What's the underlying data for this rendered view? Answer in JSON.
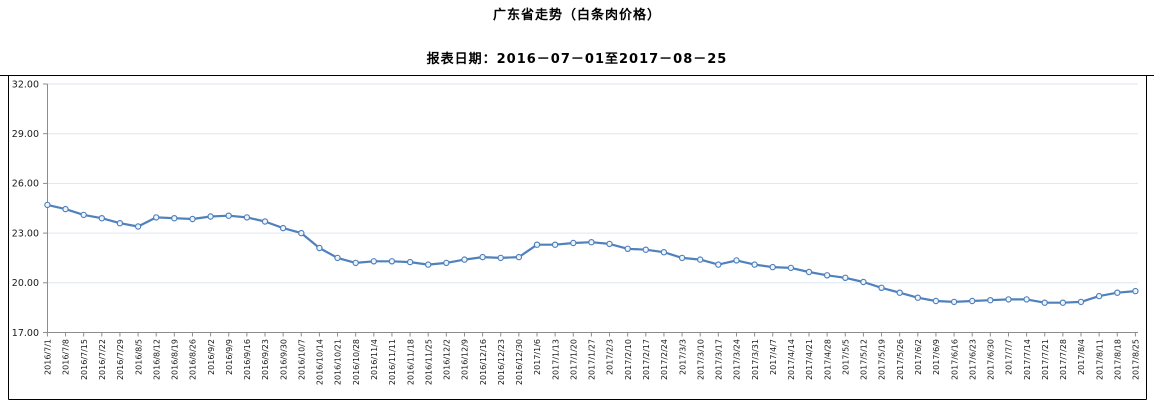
{
  "page": {
    "title": "广东省走势（白条肉价格）",
    "subtitle": "报表日期：2016－07－01至2017－08－25"
  },
  "chart_data": {
    "type": "line",
    "title": "广东省走势（白条肉价格）",
    "subtitle": "报表日期：2016－07－01至2017－08－25",
    "legend": "none",
    "grid": "horizontal",
    "ylim": [
      17,
      32
    ],
    "yticks": [
      17,
      20,
      23,
      26,
      29,
      32
    ],
    "ytick_labels": [
      "17.00",
      "20.00",
      "23.00",
      "26.00",
      "29.00",
      "32.00"
    ],
    "x": [
      "2016/7/1",
      "2016/7/8",
      "2016/7/15",
      "2016/7/22",
      "2016/7/29",
      "2016/8/5",
      "2016/8/12",
      "2016/8/19",
      "2016/8/26",
      "2016/9/2",
      "2016/9/9",
      "2016/9/16",
      "2016/9/23",
      "2016/9/30",
      "2016/10/7",
      "2016/10/14",
      "2016/10/21",
      "2016/10/28",
      "2016/11/4",
      "2016/11/11",
      "2016/11/18",
      "2016/11/25",
      "2016/12/2",
      "2016/12/9",
      "2016/12/16",
      "2016/12/23",
      "2016/12/30",
      "2017/1/6",
      "2017/1/13",
      "2017/1/20",
      "2017/1/27",
      "2017/2/3",
      "2017/2/10",
      "2017/2/17",
      "2017/2/24",
      "2017/3/3",
      "2017/3/10",
      "2017/3/17",
      "2017/3/24",
      "2017/3/31",
      "2017/4/7",
      "2017/4/14",
      "2017/4/21",
      "2017/4/28",
      "2017/5/5",
      "2017/5/12",
      "2017/5/19",
      "2017/5/26",
      "2017/6/2",
      "2017/6/9",
      "2017/6/16",
      "2017/6/23",
      "2017/6/30",
      "2017/7/7",
      "2017/7/14",
      "2017/7/21",
      "2017/7/28",
      "2017/8/4",
      "2017/8/11",
      "2017/8/18",
      "2017/8/25"
    ],
    "series": [
      {
        "name": "白条肉价格",
        "values": [
          24.7,
          24.45,
          24.1,
          23.9,
          23.6,
          23.4,
          23.95,
          23.9,
          23.85,
          24.0,
          24.05,
          23.95,
          23.7,
          23.3,
          23.0,
          22.1,
          21.5,
          21.2,
          21.3,
          21.3,
          21.25,
          21.1,
          21.2,
          21.4,
          21.55,
          21.5,
          21.55,
          22.3,
          22.3,
          22.4,
          22.45,
          22.35,
          22.05,
          22.0,
          21.85,
          21.5,
          21.4,
          21.1,
          21.35,
          21.1,
          20.95,
          20.9,
          20.65,
          20.45,
          20.3,
          20.05,
          19.7,
          19.4,
          19.1,
          18.9,
          18.85,
          18.9,
          18.95,
          19.0,
          19.0,
          18.8,
          18.8,
          18.85,
          19.2,
          19.4,
          19.5
        ]
      }
    ],
    "colors": {
      "line": "#4f81bd",
      "marker_fill": "#ffffff",
      "grid": "#dce6f1",
      "axis": "#8c8c8c",
      "tick_text": "#1a1a1a",
      "border": "#000000"
    }
  }
}
